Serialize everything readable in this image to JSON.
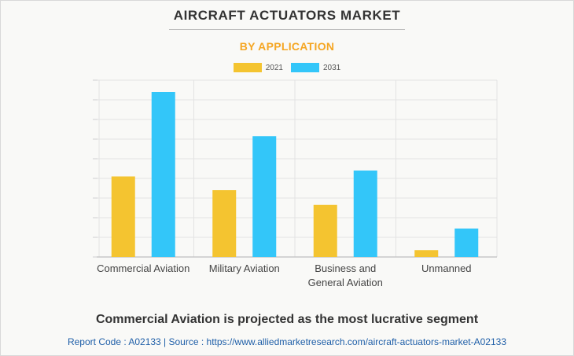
{
  "header": {
    "title": "AIRCRAFT ACTUATORS MARKET",
    "subtitle": "BY APPLICATION"
  },
  "legend": {
    "items": [
      {
        "label": "2021",
        "color": "#f4c430"
      },
      {
        "label": "2031",
        "color": "#33c6f9"
      }
    ]
  },
  "chart_data": {
    "type": "bar",
    "categories": [
      [
        "Commercial Aviation"
      ],
      [
        "Military Aviation"
      ],
      [
        "Business and",
        "General Aviation"
      ],
      [
        "Unmanned"
      ]
    ],
    "series": [
      {
        "name": "2021",
        "color": "#f4c430",
        "values": [
          4.1,
          3.4,
          2.65,
          0.35
        ]
      },
      {
        "name": "2031",
        "color": "#33c6f9",
        "values": [
          8.4,
          6.15,
          4.4,
          1.45
        ]
      }
    ],
    "ylim": [
      0,
      9
    ],
    "y_grid_lines": 9,
    "grid": true,
    "legend_position": "top-center"
  },
  "footer": {
    "headline": "Commercial Aviation is projected as the most lucrative segment",
    "source": "Report Code : A02133  |  Source : https://www.alliedmarketresearch.com/aircraft-actuators-market-A02133"
  }
}
